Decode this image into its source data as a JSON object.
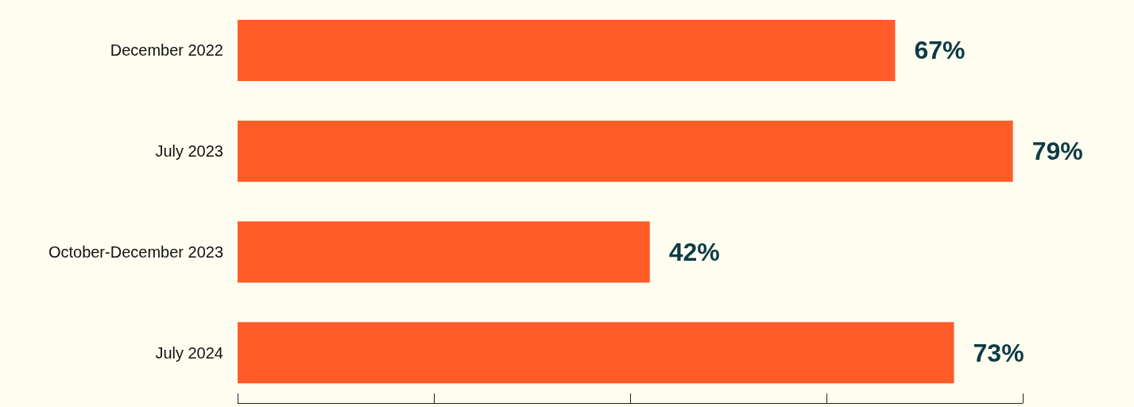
{
  "chart_data": {
    "type": "bar",
    "orientation": "horizontal",
    "categories": [
      "December 2022",
      "July 2023",
      "October-December 2023",
      "July 2024"
    ],
    "values": [
      67,
      79,
      42,
      73
    ],
    "color": "#ff5c28",
    "value_labels": [
      "67%",
      "79%",
      "42%",
      "73%"
    ],
    "tick_labels": "y",
    "grid": false
  }
}
